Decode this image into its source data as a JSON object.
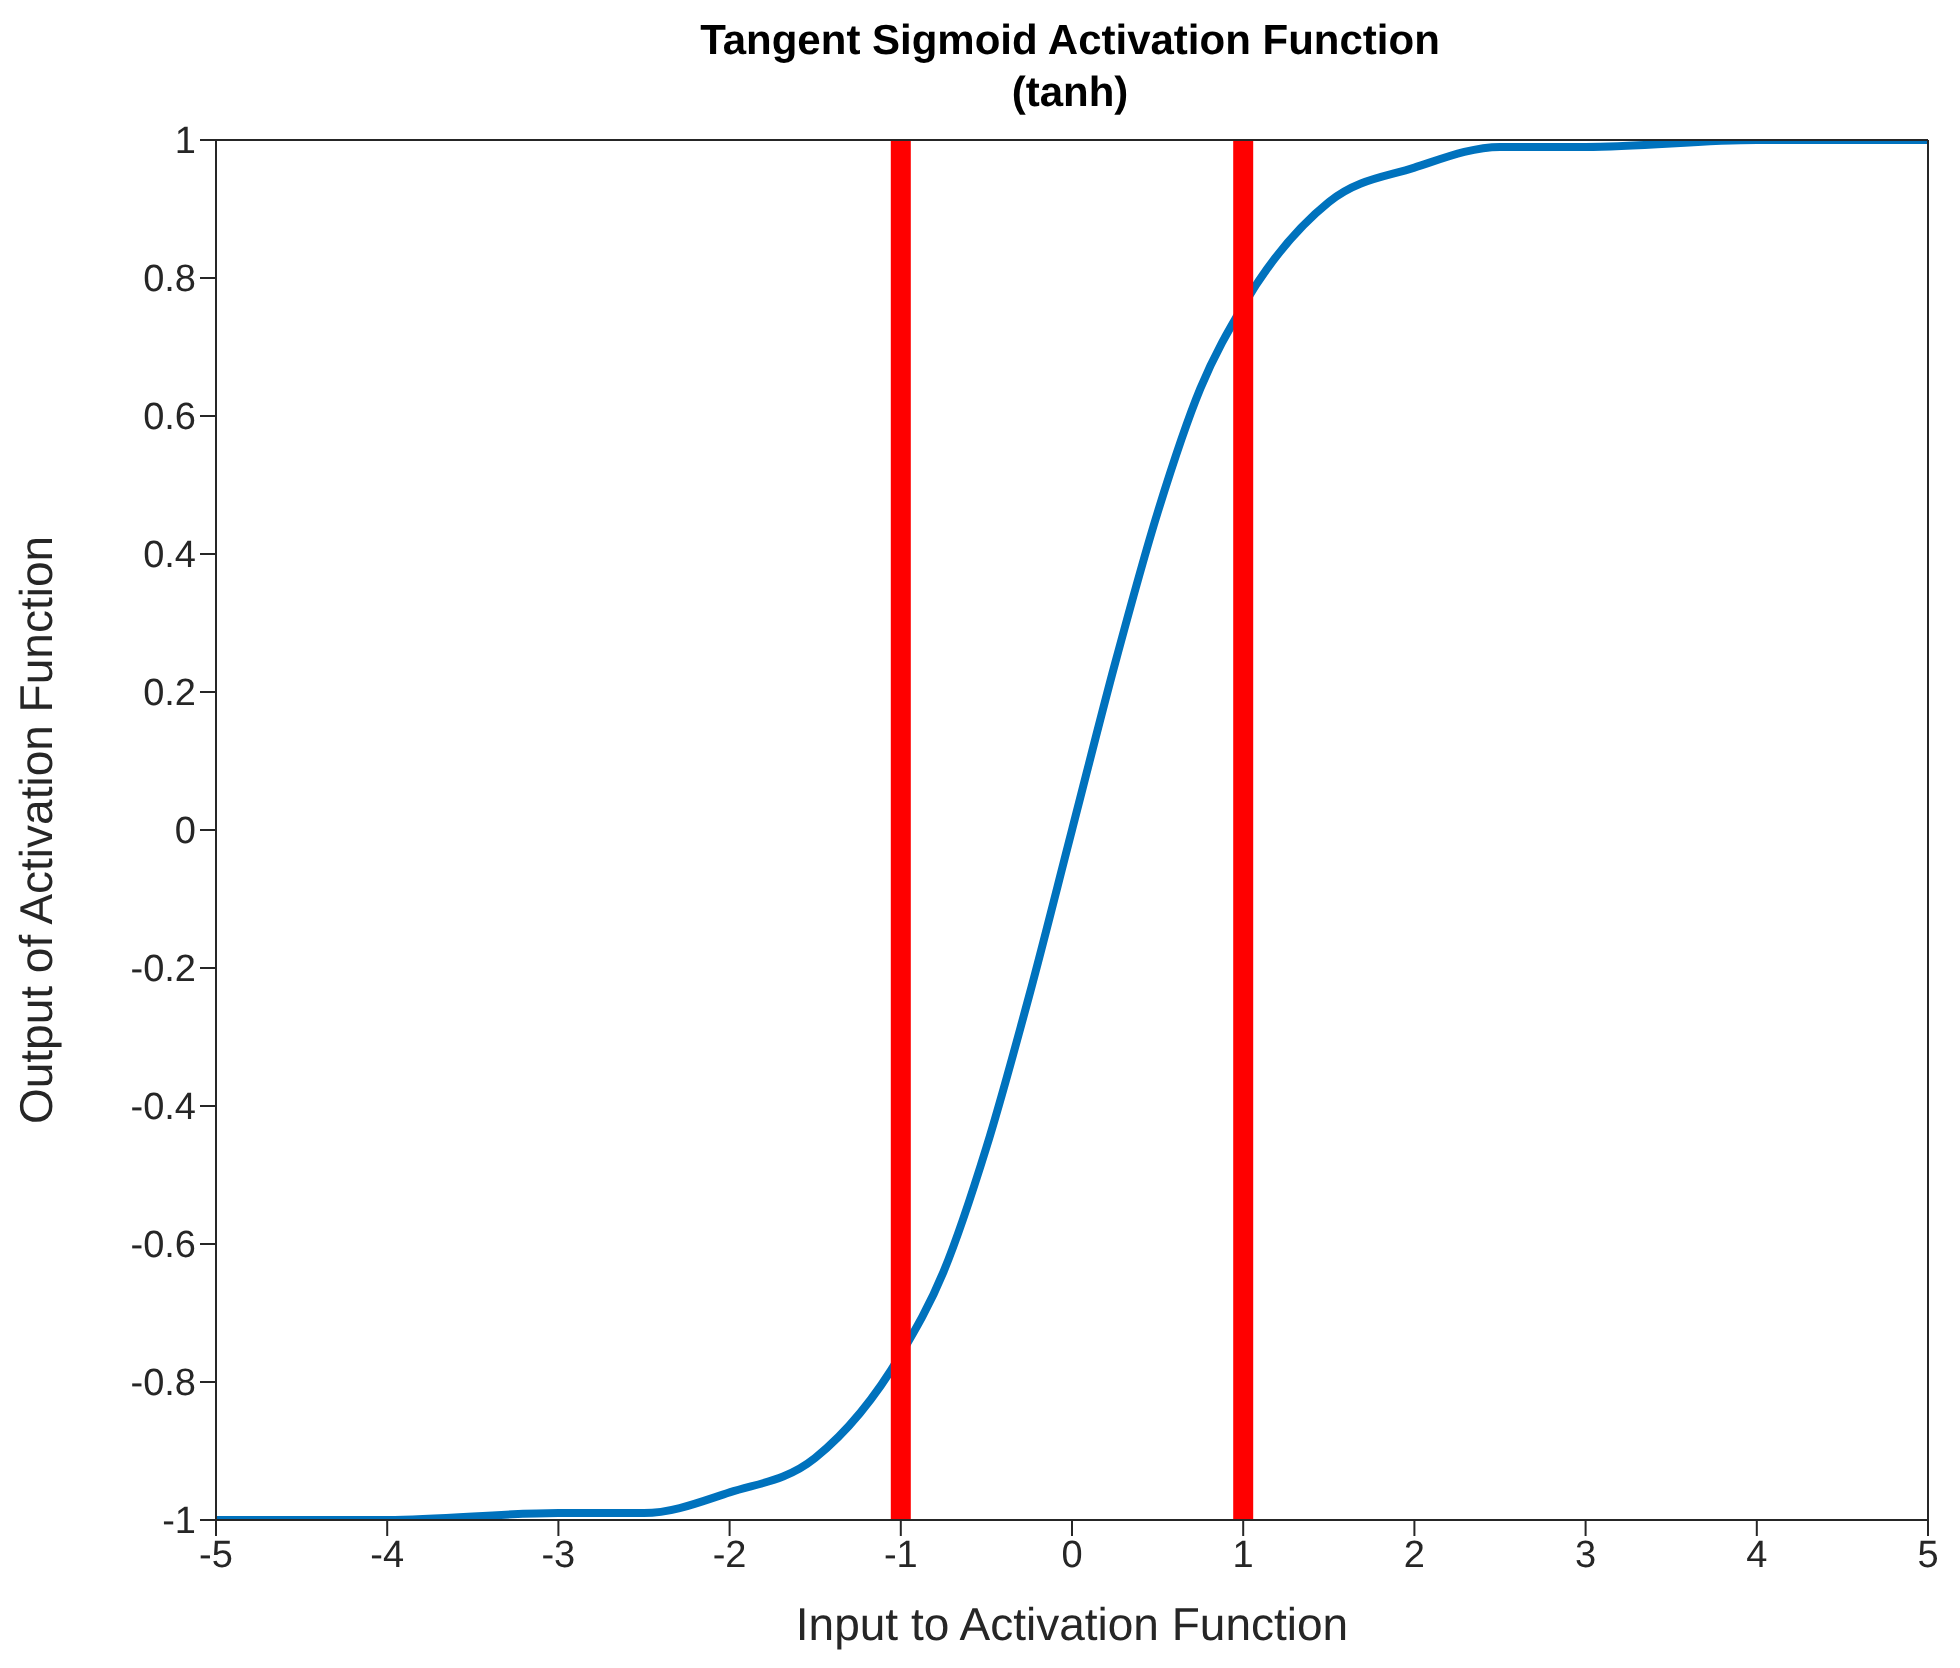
{
  "chart_data": {
    "type": "line",
    "title": "Tangent Sigmoid Activation Function\n(tanh)",
    "xlabel": "Input to Activation Function",
    "ylabel": "Output of Activation Function",
    "x": [
      -5,
      -4,
      -3,
      -2.5,
      -2,
      -1.5,
      -1,
      -0.75,
      -0.5,
      -0.25,
      0,
      0.25,
      0.5,
      0.75,
      1,
      1.5,
      2,
      2.5,
      3,
      4,
      5
    ],
    "series": [
      {
        "color": "#0072bd",
        "values": [
          -1,
          -1,
          -0.99,
          -0.99,
          -0.96,
          -0.91,
          -0.76,
          -0.64,
          -0.46,
          -0.24,
          0,
          0.24,
          0.46,
          0.64,
          0.76,
          0.91,
          0.96,
          0.99,
          0.99,
          1,
          1
        ]
      }
    ],
    "xlim": [
      -5,
      5
    ],
    "xticks": [
      -5,
      -4,
      -3,
      -2,
      -1,
      0,
      1,
      2,
      3,
      4,
      5
    ],
    "ylim": [
      -1,
      1
    ],
    "yticks": [
      -1,
      -0.8,
      -0.6,
      -0.4,
      -0.2,
      0,
      0.2,
      0.4,
      0.6,
      0.8,
      1
    ],
    "ref_lines": [
      {
        "axis": "x",
        "value": -1,
        "color": "#ff0000"
      },
      {
        "axis": "x",
        "value": 1,
        "color": "#ff0000"
      }
    ],
    "grid": false,
    "legend": false,
    "marker": "none",
    "line_style": "solid"
  }
}
